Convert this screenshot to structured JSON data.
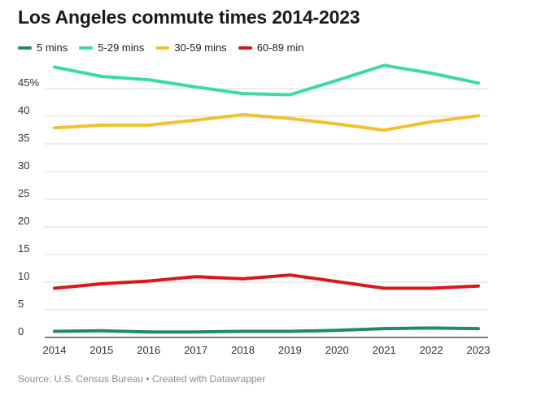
{
  "title": "Los Angeles commute times 2014-2023",
  "footer": "Source: U.S. Census Bureau • Created with Datawrapper",
  "chart_data": {
    "type": "line",
    "title": "Los Angeles commute times 2014-2023",
    "xlabel": "",
    "ylabel": "",
    "x": [
      "2014",
      "2015",
      "2016",
      "2017",
      "2018",
      "2019",
      "2020",
      "2021",
      "2022",
      "2023"
    ],
    "ylim": [
      0,
      50
    ],
    "yticks": [
      0,
      5,
      10,
      15,
      20,
      25,
      30,
      35,
      40,
      45
    ],
    "ytick_labels": [
      "0",
      "5",
      "10",
      "15",
      "20",
      "25",
      "30",
      "35",
      "40",
      "45%"
    ],
    "grid": true,
    "legend_position": "top-left",
    "series": [
      {
        "name": "5 mins",
        "color": "#1f8a6e",
        "values": [
          1.1,
          1.2,
          1.0,
          1.0,
          1.1,
          1.1,
          1.3,
          1.6,
          1.7,
          1.6
        ]
      },
      {
        "name": "5-29 mins",
        "color": "#3ddba0",
        "values": [
          48.9,
          47.2,
          46.6,
          45.3,
          44.1,
          43.9,
          46.5,
          49.2,
          47.8,
          46.0
        ]
      },
      {
        "name": "30-59 mins",
        "color": "#f3c12b",
        "values": [
          37.9,
          38.4,
          38.4,
          39.3,
          40.3,
          39.6,
          38.6,
          37.5,
          39.0,
          40.1
        ]
      },
      {
        "name": "60-89 min",
        "color": "#d7191c",
        "values": [
          8.9,
          9.7,
          10.2,
          11.0,
          10.6,
          11.3,
          10.1,
          8.9,
          8.9,
          9.3
        ]
      }
    ]
  }
}
